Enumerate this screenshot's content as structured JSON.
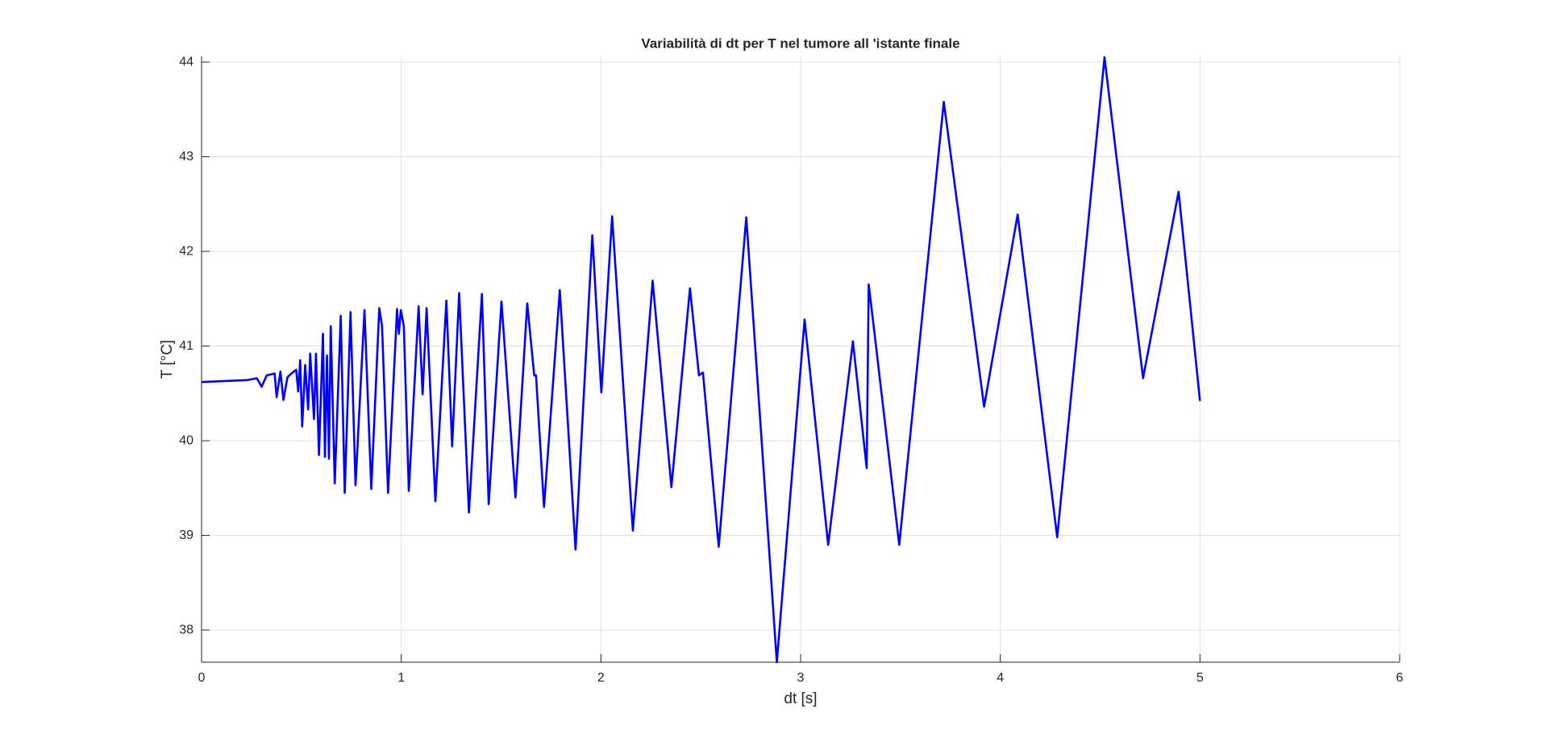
{
  "chart_data": {
    "type": "line",
    "title": "Variabilità di dt per T nel tumore all 'istante finale",
    "x_label": "dt [s]",
    "y_label": "T [°C]",
    "x": [
      0,
      0.227,
      0.277,
      0.301,
      0.326,
      0.366,
      0.376,
      0.395,
      0.41,
      0.43,
      0.45,
      0.474,
      0.484,
      0.494,
      0.504,
      0.519,
      0.534,
      0.544,
      0.563,
      0.573,
      0.588,
      0.608,
      0.618,
      0.628,
      0.638,
      0.647,
      0.667,
      0.697,
      0.717,
      0.746,
      0.771,
      0.816,
      0.85,
      0.89,
      0.904,
      0.934,
      0.979,
      0.988,
      0.998,
      1.013,
      1.038,
      1.087,
      1.107,
      1.127,
      1.171,
      1.226,
      1.255,
      1.29,
      1.339,
      1.404,
      1.438,
      1.502,
      1.572,
      1.631,
      1.666,
      1.675,
      1.715,
      1.794,
      1.873,
      1.957,
      2.002,
      2.056,
      2.16,
      2.259,
      2.353,
      2.446,
      2.491,
      2.511,
      2.59,
      2.728,
      2.881,
      3.02,
      3.138,
      3.262,
      3.331,
      3.341,
      3.366,
      3.494,
      3.717,
      3.919,
      4.087,
      4.285,
      4.522,
      4.715,
      4.893,
      5.0
    ],
    "values": [
      40.62,
      40.64,
      40.66,
      40.57,
      40.69,
      40.71,
      40.46,
      40.73,
      40.43,
      40.67,
      40.71,
      40.75,
      40.52,
      40.85,
      40.15,
      40.8,
      40.33,
      40.92,
      40.23,
      40.92,
      39.85,
      41.13,
      39.83,
      40.9,
      39.81,
      41.21,
      39.55,
      41.32,
      39.45,
      41.36,
      39.53,
      41.38,
      39.49,
      41.4,
      41.21,
      39.45,
      41.39,
      41.13,
      41.38,
      41.21,
      39.47,
      41.42,
      40.49,
      41.4,
      39.36,
      41.48,
      39.94,
      41.56,
      39.24,
      41.55,
      39.33,
      41.47,
      39.4,
      41.45,
      40.69,
      40.69,
      39.3,
      41.59,
      38.85,
      42.17,
      40.51,
      42.37,
      39.05,
      41.69,
      39.51,
      41.61,
      40.69,
      40.72,
      38.88,
      42.36,
      37.66,
      41.28,
      38.9,
      41.05,
      39.71,
      41.65,
      41.21,
      38.9,
      43.58,
      40.36,
      42.39,
      38.98,
      44.05,
      40.66,
      42.63,
      40.42
    ],
    "color": "#0000ff",
    "xlim": [
      0,
      6
    ],
    "xticks": [
      0,
      1,
      2,
      3,
      4,
      5,
      6
    ],
    "ylim": [
      37.66,
      44.06
    ],
    "yticks": [
      38,
      39,
      40,
      41,
      42,
      43,
      44
    ],
    "grid": true
  }
}
